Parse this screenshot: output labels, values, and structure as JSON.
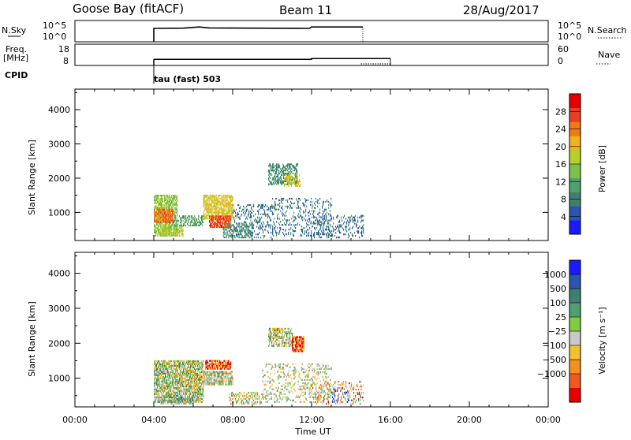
{
  "header": {
    "title": "Goose Bay (fitACF)",
    "beam": "Beam 11",
    "date": "28/Aug/2017"
  },
  "colors": {
    "power_scale": [
      "#1a1aff",
      "#2a55b0",
      "#3f7f6f",
      "#4fa070",
      "#7cc24a",
      "#b6cf2d",
      "#f2b21c",
      "#f07a18",
      "#e6402a",
      "#e60000"
    ],
    "velocity_scale": [
      "#1a1aff",
      "#2a55b0",
      "#3f7f6f",
      "#4fa070",
      "#80cc40",
      "#c8c8c8",
      "#f2c030",
      "#f29020",
      "#f05a20",
      "#e60000"
    ]
  },
  "chart_data": [
    {
      "type": "line",
      "name": "top-panel",
      "left_labels": [
        "N.Sky",
        "Freq.",
        "[MHz]",
        "CPID"
      ],
      "right_labels": [
        "N.Search",
        "Nave"
      ],
      "nsky_ticks": [
        "10^5",
        "10^0"
      ],
      "freq_ticks": [
        "18",
        "8"
      ],
      "nave_ticks": [
        "60",
        "0"
      ],
      "cpid_text": "tau (fast) 503",
      "time_range_hours": [
        4.0,
        16.0
      ],
      "nsky_level": [
        [
          4.0,
          3.0
        ],
        [
          5.5,
          3.1
        ],
        [
          6.3,
          3.6
        ],
        [
          6.8,
          3.2
        ],
        [
          9.0,
          3.1
        ],
        [
          11.9,
          3.0
        ],
        [
          12.0,
          3.6
        ],
        [
          14.6,
          3.6
        ]
      ],
      "freq_level": [
        [
          4.0,
          10.5
        ],
        [
          12.0,
          10.5
        ],
        [
          12.0,
          11.0
        ],
        [
          16.0,
          11.0
        ]
      ]
    },
    {
      "type": "heatmap",
      "name": "power-panel",
      "ylabel": "Slant Range [km]",
      "xlabel": "Time UT",
      "x_ticks": [
        "00:00",
        "04:00",
        "08:00",
        "12:00",
        "16:00",
        "20:00",
        "00:00"
      ],
      "x_range_hours": [
        0,
        24
      ],
      "y_ticks": [
        1000,
        2000,
        3000,
        4000
      ],
      "y_range_km": [
        180,
        4600
      ],
      "colorbar_label": "Power [dB]",
      "colorbar_ticks": [
        4,
        8,
        12,
        16,
        20,
        24,
        28
      ],
      "colorbar_range": [
        0,
        32
      ],
      "patches": [
        {
          "t": [
            4.0,
            5.2
          ],
          "r": [
            300,
            1500
          ],
          "v": 14,
          "d": 0.7
        },
        {
          "t": [
            4.0,
            5.0
          ],
          "r": [
            700,
            1100
          ],
          "v": 24,
          "d": 0.8
        },
        {
          "t": [
            4.3,
            5.5
          ],
          "r": [
            300,
            600
          ],
          "v": 16,
          "d": 0.6
        },
        {
          "t": [
            5.0,
            6.5
          ],
          "r": [
            600,
            900
          ],
          "v": 10,
          "d": 0.5
        },
        {
          "t": [
            6.5,
            8.0
          ],
          "r": [
            800,
            1500
          ],
          "v": 18,
          "d": 0.7
        },
        {
          "t": [
            6.8,
            7.9
          ],
          "r": [
            550,
            900
          ],
          "v": 26,
          "d": 0.8
        },
        {
          "t": [
            7.5,
            9.0
          ],
          "r": [
            250,
            700
          ],
          "v": 8,
          "d": 0.4
        },
        {
          "t": [
            8.0,
            10.0
          ],
          "r": [
            250,
            1200
          ],
          "v": 6,
          "d": 0.25
        },
        {
          "t": [
            9.8,
            11.3
          ],
          "r": [
            1800,
            2400
          ],
          "v": 8,
          "d": 0.5
        },
        {
          "t": [
            10.6,
            11.4
          ],
          "r": [
            1750,
            2100
          ],
          "v": 18,
          "d": 0.5
        },
        {
          "t": [
            10.0,
            13.0
          ],
          "r": [
            300,
            1400
          ],
          "v": 6,
          "d": 0.2
        },
        {
          "t": [
            12.0,
            14.6
          ],
          "r": [
            250,
            900
          ],
          "v": 5,
          "d": 0.25
        }
      ]
    },
    {
      "type": "heatmap",
      "name": "velocity-panel",
      "ylabel": "Slant Range [km]",
      "xlabel": "Time UT",
      "x_ticks": [
        "00:00",
        "04:00",
        "08:00",
        "12:00",
        "16:00",
        "20:00",
        "00:00"
      ],
      "x_range_hours": [
        0,
        24
      ],
      "y_ticks": [
        1000,
        2000,
        3000,
        4000
      ],
      "y_range_km": [
        180,
        4600
      ],
      "colorbar_label": "Velocity [m s⁻¹]",
      "colorbar_ticks": [
        "1000",
        "500",
        "100",
        "25",
        "−25",
        "−100",
        "−500",
        "−1000"
      ],
      "patches": [
        {
          "t": [
            4.0,
            6.5
          ],
          "r": [
            300,
            1500
          ],
          "v": 5,
          "d": 0.75
        },
        {
          "t": [
            6.5,
            8.0
          ],
          "r": [
            800,
            1200
          ],
          "v": 5,
          "d": 0.7
        },
        {
          "t": [
            6.6,
            7.9
          ],
          "r": [
            1250,
            1500
          ],
          "v": 9,
          "d": 0.8
        },
        {
          "t": [
            4.3,
            6.0
          ],
          "r": [
            250,
            450
          ],
          "v": 4,
          "d": 0.6
        },
        {
          "t": [
            7.8,
            9.5
          ],
          "r": [
            250,
            600
          ],
          "v": 6,
          "d": 0.4
        },
        {
          "t": [
            9.8,
            11.0
          ],
          "r": [
            1900,
            2400
          ],
          "v": 5,
          "d": 0.6
        },
        {
          "t": [
            11.0,
            11.6
          ],
          "r": [
            1750,
            2200
          ],
          "v": 9,
          "d": 0.8
        },
        {
          "t": [
            9.5,
            13.0
          ],
          "r": [
            300,
            1400
          ],
          "v": 5,
          "d": 0.2
        },
        {
          "t": [
            12.0,
            14.6
          ],
          "r": [
            250,
            900
          ],
          "v": 7,
          "d": 0.2
        },
        {
          "t": [
            13.0,
            14.5
          ],
          "r": [
            300,
            700
          ],
          "v": 1,
          "d": 0.15
        }
      ]
    }
  ]
}
